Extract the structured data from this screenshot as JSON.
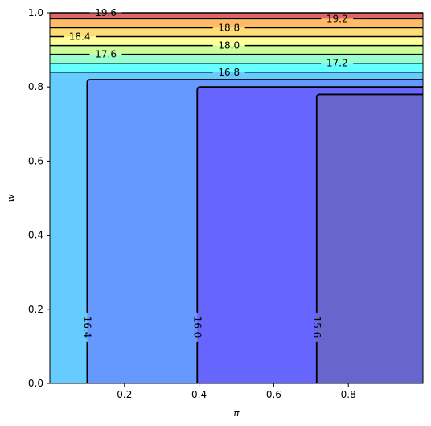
{
  "chart_data": {
    "type": "contour",
    "xlabel": "π",
    "ylabel": "w",
    "xlim": [
      0.0,
      1.0
    ],
    "ylim": [
      0.0,
      1.0
    ],
    "x_ticks": [
      0.2,
      0.4,
      0.6,
      0.8
    ],
    "x_tick_labels": [
      "0.2",
      "0.4",
      "0.6",
      "0.8"
    ],
    "y_ticks": [
      0.0,
      0.2,
      0.4,
      0.6,
      0.8,
      1.0
    ],
    "y_tick_labels": [
      "0.0",
      "0.2",
      "0.4",
      "0.6",
      "0.8",
      "1.0"
    ],
    "grid": false,
    "colormap": "jet",
    "levels": [
      15.6,
      16.0,
      16.4,
      16.8,
      17.2,
      17.6,
      18.0,
      18.4,
      18.8,
      19.2,
      19.6
    ],
    "level_labels": [
      "15.6",
      "16.0",
      "16.4",
      "16.8",
      "17.2",
      "17.6",
      "18.0",
      "18.4",
      "18.8",
      "19.2",
      "19.6"
    ],
    "vertical_contours": [
      {
        "level": 16.4,
        "x": 0.1,
        "w_top": 0.82,
        "label_w": 0.152
      },
      {
        "level": 16.0,
        "x": 0.395,
        "w_top": 0.8,
        "label_w": 0.152
      },
      {
        "level": 15.6,
        "x": 0.715,
        "w_top": 0.78,
        "label_w": 0.152
      }
    ],
    "horizontal_contours": [
      {
        "level": 16.8,
        "w": 0.84,
        "label_x": 0.48
      },
      {
        "level": 17.2,
        "w": 0.864,
        "label_x": 0.77
      },
      {
        "level": 17.6,
        "w": 0.888,
        "label_x": 0.15
      },
      {
        "level": 18.0,
        "w": 0.912,
        "label_x": 0.48
      },
      {
        "level": 18.4,
        "w": 0.936,
        "label_x": 0.08
      },
      {
        "level": 18.8,
        "w": 0.96,
        "label_x": 0.48
      },
      {
        "level": 19.2,
        "w": 0.984,
        "label_x": 0.77
      },
      {
        "level": 19.6,
        "w": 1.0,
        "label_x": 0.15
      }
    ],
    "fill_colors": {
      "lt_15_6": "#6666cc",
      "15_6_16_0": "#6666ff",
      "16_0_16_4": "#6699ff",
      "16_4_16_8": "#66ccff",
      "16_8_17_2": "#66ffff",
      "17_2_17_6": "#99ffcc",
      "17_6_18_0": "#ccff99",
      "18_0_18_4": "#ffff99",
      "18_4_18_8": "#ffdd77",
      "18_8_19_2": "#ffbb66",
      "19_2_19_6": "#ff9966",
      "19_6_20_0": "#dd6666"
    }
  }
}
